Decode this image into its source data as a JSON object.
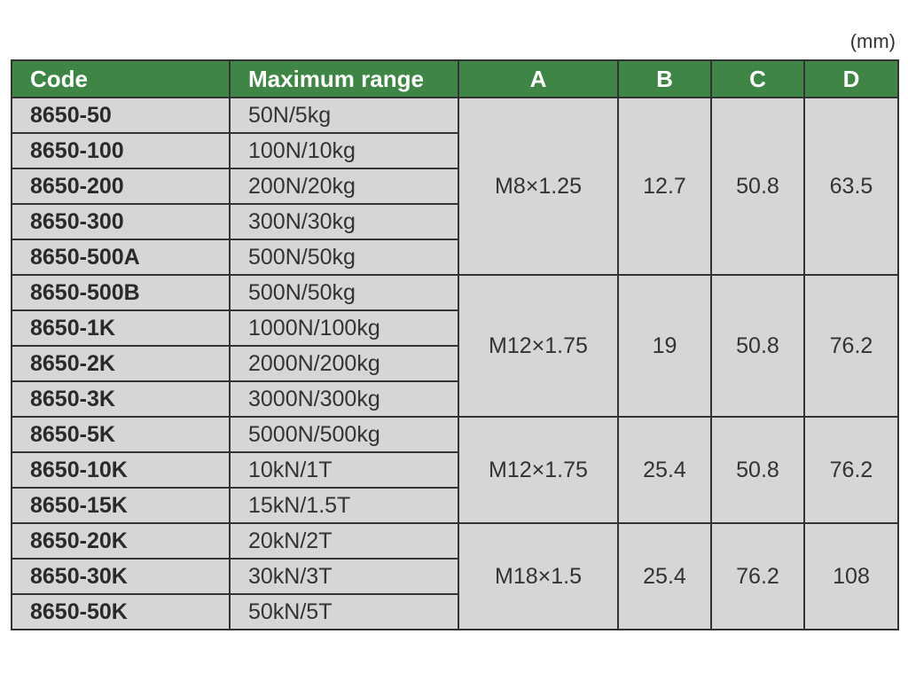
{
  "unit": "(mm)",
  "headers": {
    "code": "Code",
    "range": "Maximum range",
    "a": "A",
    "b": "B",
    "c": "C",
    "d": "D"
  },
  "colors": {
    "header_bg": "#3f8545",
    "cell_bg": "#d5d6d8",
    "border": "#333333"
  },
  "groups": [
    {
      "a": "M8×1.25",
      "b": "12.7",
      "c": "50.8",
      "d": "63.5",
      "rows": [
        {
          "code": "8650-50",
          "range": "50N/5kg"
        },
        {
          "code": "8650-100",
          "range": "100N/10kg"
        },
        {
          "code": "8650-200",
          "range": "200N/20kg"
        },
        {
          "code": "8650-300",
          "range": "300N/30kg"
        },
        {
          "code": "8650-500A",
          "range": "500N/50kg"
        }
      ]
    },
    {
      "a": "M12×1.75",
      "b": "19",
      "c": "50.8",
      "d": "76.2",
      "rows": [
        {
          "code": "8650-500B",
          "range": "500N/50kg"
        },
        {
          "code": "8650-1K",
          "range": "1000N/100kg"
        },
        {
          "code": "8650-2K",
          "range": "2000N/200kg"
        },
        {
          "code": "8650-3K",
          "range": "3000N/300kg"
        }
      ]
    },
    {
      "a": "M12×1.75",
      "b": "25.4",
      "c": "50.8",
      "d": "76.2",
      "rows": [
        {
          "code": "8650-5K",
          "range": "5000N/500kg"
        },
        {
          "code": "8650-10K",
          "range": "10kN/1T"
        },
        {
          "code": "8650-15K",
          "range": "15kN/1.5T"
        }
      ]
    },
    {
      "a": "M18×1.5",
      "b": "25.4",
      "c": "76.2",
      "d": "108",
      "rows": [
        {
          "code": "8650-20K",
          "range": "20kN/2T"
        },
        {
          "code": "8650-30K",
          "range": "30kN/3T"
        },
        {
          "code": "8650-50K",
          "range": "50kN/5T"
        }
      ]
    }
  ]
}
